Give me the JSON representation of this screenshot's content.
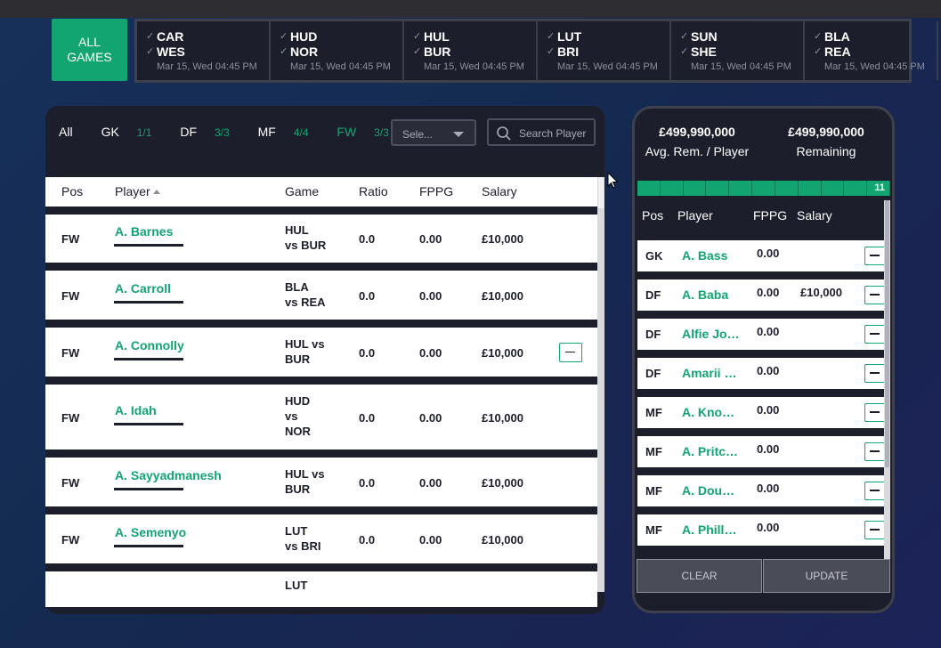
{
  "games": {
    "all_label": "ALL GAMES",
    "list": [
      {
        "home": "CAR",
        "away": "WES",
        "date": "Mar 15, Wed 04:45 PM"
      },
      {
        "home": "HUD",
        "away": "NOR",
        "date": "Mar 15, Wed 04:45 PM"
      },
      {
        "home": "HUL",
        "away": "BUR",
        "date": "Mar 15, Wed 04:45 PM"
      },
      {
        "home": "LUT",
        "away": "BRI",
        "date": "Mar 15, Wed 04:45 PM"
      },
      {
        "home": "SUN",
        "away": "SHE",
        "date": "Mar 15, Wed 04:45 PM"
      },
      {
        "home": "BLA",
        "away": "REA",
        "date": "Mar 15, Wed 04:45 PM"
      }
    ]
  },
  "filters": {
    "all": "All",
    "gk": "GK",
    "gk_count": "1/1",
    "df": "DF",
    "df_count": "3/3",
    "mf": "MF",
    "mf_count": "4/4",
    "fw": "FW",
    "fw_count": "3/3",
    "select_placeholder": "Sele...",
    "search_placeholder": "Search Player"
  },
  "table": {
    "headers": {
      "pos": "Pos",
      "player": "Player",
      "game": "Game",
      "ratio": "Ratio",
      "fppg": "FPPG",
      "salary": "Salary"
    },
    "rows": [
      {
        "pos": "FW",
        "player": "A. Barnes",
        "game": [
          "HUL",
          "vs BUR"
        ],
        "ratio": "0.0",
        "fppg": "0.00",
        "salary": "£10,000",
        "selected": false
      },
      {
        "pos": "FW",
        "player": "A. Carroll",
        "game": [
          "BLA",
          "vs REA"
        ],
        "ratio": "0.0",
        "fppg": "0.00",
        "salary": "£10,000",
        "selected": false
      },
      {
        "pos": "FW",
        "player": "A. Connolly",
        "game": [
          "HUL vs",
          "BUR"
        ],
        "ratio": "0.0",
        "fppg": "0.00",
        "salary": "£10,000",
        "selected": true
      },
      {
        "pos": "FW",
        "player": "A. Idah",
        "game": [
          "HUD",
          "vs",
          "NOR"
        ],
        "ratio": "0.0",
        "fppg": "0.00",
        "salary": "£10,000",
        "selected": false
      },
      {
        "pos": "FW",
        "player": "A. Sayyadmanesh",
        "game": [
          "HUL vs",
          "BUR"
        ],
        "ratio": "0.0",
        "fppg": "0.00",
        "salary": "£10,000",
        "selected": false
      },
      {
        "pos": "FW",
        "player": "A. Semenyo",
        "game": [
          "LUT",
          "vs BRI"
        ],
        "ratio": "0.0",
        "fppg": "0.00",
        "salary": "£10,000",
        "selected": false
      },
      {
        "pos": "",
        "player": "",
        "game": [
          "LUT"
        ],
        "ratio": "",
        "fppg": "",
        "salary": "",
        "selected": false
      }
    ]
  },
  "lineup": {
    "avg_amount": "£499,990,000",
    "avg_label": "Avg. Rem. / Player",
    "rem_amount": "£499,990,000",
    "rem_label": "Remaining",
    "filled_count": "11",
    "filled_fraction": 1.0,
    "headers": {
      "pos": "Pos",
      "player": "Player",
      "fppg": "FPPG",
      "salary": "Salary"
    },
    "rows": [
      {
        "pos": "GK",
        "player": "A. Bass",
        "fppg": "0.00",
        "salary": ""
      },
      {
        "pos": "DF",
        "player": "A. Baba",
        "fppg": "0.00",
        "salary": "£10,000"
      },
      {
        "pos": "DF",
        "player": "Alfie Jo…",
        "fppg": "0.00",
        "salary": ""
      },
      {
        "pos": "DF",
        "player": "Amarii …",
        "fppg": "0.00",
        "salary": ""
      },
      {
        "pos": "MF",
        "player": "A. Kno…",
        "fppg": "0.00",
        "salary": ""
      },
      {
        "pos": "MF",
        "player": "A. Pritc…",
        "fppg": "0.00",
        "salary": ""
      },
      {
        "pos": "MF",
        "player": "A. Dou…",
        "fppg": "0.00",
        "salary": ""
      },
      {
        "pos": "MF",
        "player": "A. Phill…",
        "fppg": "0.00",
        "salary": ""
      }
    ],
    "clear_label": "CLEAR",
    "update_label": "UPDATE"
  }
}
